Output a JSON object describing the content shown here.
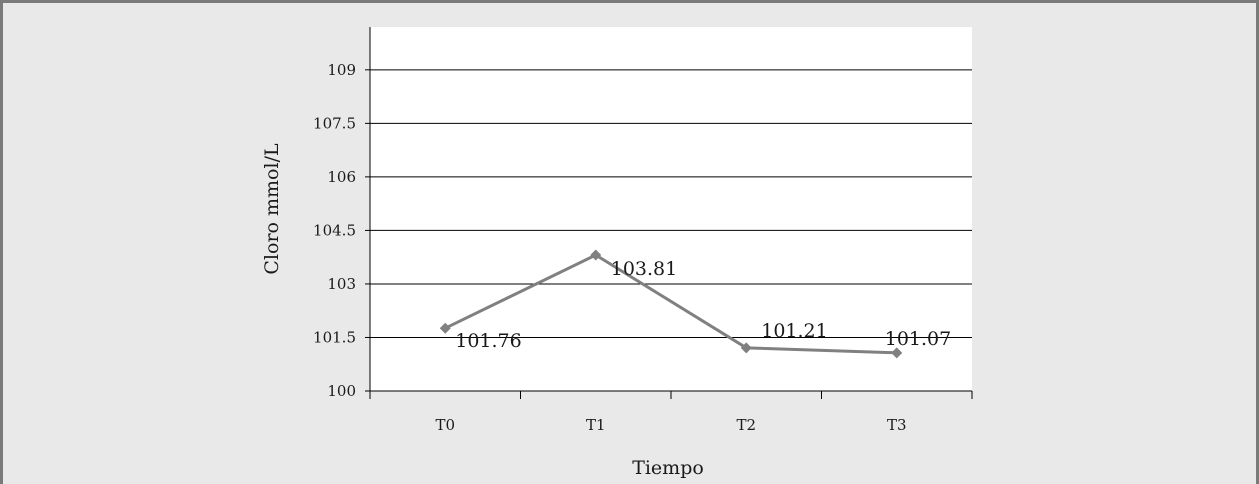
{
  "chart_data": {
    "type": "line",
    "categories": [
      "T0",
      "T1",
      "T2",
      "T3"
    ],
    "series": [
      {
        "values": [
          101.76,
          103.81,
          101.21,
          101.07
        ],
        "data_labels": [
          "101.76",
          "103.81",
          "101.21",
          "101.07"
        ],
        "color": "#808080"
      }
    ],
    "title": "",
    "xlabel": "Tiempo",
    "ylabel": "Cloro mmol/L",
    "ylim": [
      100,
      110.2
    ],
    "yticks": [
      100,
      101.5,
      103,
      104.5,
      106,
      107.5,
      109
    ],
    "ytick_labels": [
      "100",
      "101.5",
      "103",
      "104.5",
      "106",
      "107.5",
      "109"
    ],
    "grid": true,
    "legend": "none",
    "colors": {
      "background": "#e9e9e9",
      "plot_area": "#ffffff",
      "frame_border": "#7a7a7a",
      "gridline": "#000000",
      "marker": "#808080"
    }
  }
}
